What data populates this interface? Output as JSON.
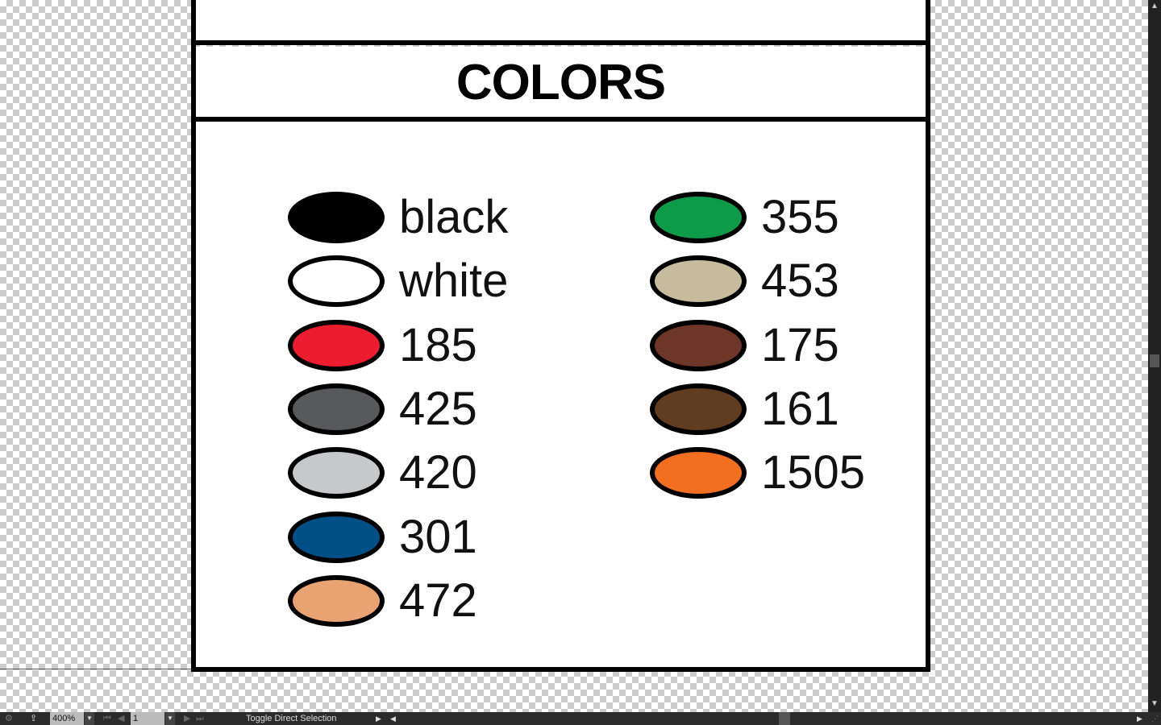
{
  "artboard": {
    "title": "COLORS",
    "left_column": [
      {
        "label": "black",
        "color": "#000000"
      },
      {
        "label": "white",
        "color": "#ffffff"
      },
      {
        "label": "185",
        "color": "#ed1c2e"
      },
      {
        "label": "425",
        "color": "#58595b"
      },
      {
        "label": "420",
        "color": "#c7c8ca"
      },
      {
        "label": "301",
        "color": "#005087"
      },
      {
        "label": "472",
        "color": "#e9a272"
      }
    ],
    "right_column": [
      {
        "label": "355",
        "color": "#0d9b4a"
      },
      {
        "label": "453",
        "color": "#c6bc9d"
      },
      {
        "label": "175",
        "color": "#6e3629"
      },
      {
        "label": "161",
        "color": "#603d20"
      },
      {
        "label": "1505",
        "color": "#f26f21"
      }
    ]
  },
  "statusbar": {
    "zoom": "400%",
    "artboard_number": "1",
    "status_text": "Toggle Direct Selection"
  }
}
